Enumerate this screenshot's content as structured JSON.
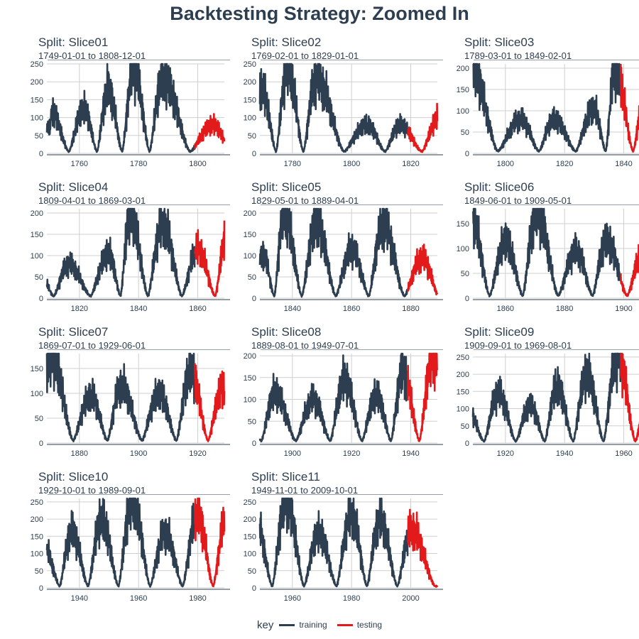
{
  "title": "Backtesting Strategy: Zoomed In",
  "legend": {
    "title": "key",
    "items": [
      {
        "label": "training",
        "color": "#2c3e50"
      },
      {
        "label": "testing",
        "color": "#e31a1c"
      }
    ]
  },
  "colors": {
    "training": "#2c3e50",
    "testing": "#e31a1c",
    "grid": "#cfcfcf",
    "axis": "#2c3e50"
  },
  "chart_data": [
    {
      "type": "line",
      "title": "Split: Slice01",
      "subtitle": "1749-01-01 to 1808-12-01",
      "xlim": [
        1749,
        1809
      ],
      "ylim": [
        0,
        250
      ],
      "yticks": [
        0,
        50,
        100,
        150,
        200,
        250
      ],
      "xticks": [
        1760,
        1780,
        1800
      ],
      "train_end": 1799,
      "grid_x": [
        1760,
        1780,
        1800
      ]
    },
    {
      "type": "line",
      "title": "Split: Slice02",
      "subtitle": "1769-02-01 to 1829-01-01",
      "xlim": [
        1769,
        1829
      ],
      "ylim": [
        0,
        250
      ],
      "yticks": [
        0,
        50,
        100,
        150,
        200,
        250
      ],
      "xticks": [
        1780,
        1800,
        1820
      ],
      "train_end": 1819,
      "grid_x": [
        1780,
        1800,
        1820
      ]
    },
    {
      "type": "line",
      "title": "Split: Slice03",
      "subtitle": "1789-03-01 to 1849-02-01",
      "xlim": [
        1789,
        1849
      ],
      "ylim": [
        0,
        210
      ],
      "yticks": [
        0,
        50,
        100,
        150,
        200
      ],
      "xticks": [
        1800,
        1820,
        1840
      ],
      "train_end": 1839,
      "grid_x": [
        1800,
        1820,
        1840
      ]
    },
    {
      "type": "line",
      "title": "Split: Slice04",
      "subtitle": "1809-04-01 to 1869-03-01",
      "xlim": [
        1809,
        1869
      ],
      "ylim": [
        0,
        210
      ],
      "yticks": [
        0,
        50,
        100,
        150,
        200
      ],
      "xticks": [
        1820,
        1840,
        1860
      ],
      "train_end": 1859,
      "grid_x": [
        1820,
        1840,
        1860
      ]
    },
    {
      "type": "line",
      "title": "Split: Slice05",
      "subtitle": "1829-05-01 to 1889-04-01",
      "xlim": [
        1829,
        1889
      ],
      "ylim": [
        0,
        210
      ],
      "yticks": [
        0,
        50,
        100,
        150,
        200
      ],
      "xticks": [
        1840,
        1860,
        1880
      ],
      "train_end": 1879,
      "grid_x": [
        1840,
        1860,
        1880
      ]
    },
    {
      "type": "line",
      "title": "Split: Slice06",
      "subtitle": "1849-06-01 to 1909-05-01",
      "xlim": [
        1849,
        1909
      ],
      "ylim": [
        0,
        180
      ],
      "yticks": [
        0,
        50,
        100,
        150
      ],
      "xticks": [
        1860,
        1880,
        1900
      ],
      "train_end": 1899,
      "grid_x": [
        1860,
        1880,
        1900
      ]
    },
    {
      "type": "line",
      "title": "Split: Slice07",
      "subtitle": "1869-07-01 to 1929-06-01",
      "xlim": [
        1869,
        1929
      ],
      "ylim": [
        0,
        180
      ],
      "yticks": [
        0,
        50,
        100,
        150
      ],
      "xticks": [
        1880,
        1900,
        1920
      ],
      "train_end": 1919,
      "grid_x": [
        1880,
        1900,
        1920
      ]
    },
    {
      "type": "line",
      "title": "Split: Slice08",
      "subtitle": "1889-08-01 to 1949-07-01",
      "xlim": [
        1889,
        1949
      ],
      "ylim": [
        0,
        205
      ],
      "yticks": [
        0,
        50,
        100,
        150,
        200
      ],
      "xticks": [
        1900,
        1920,
        1940
      ],
      "train_end": 1939,
      "grid_x": [
        1900,
        1920,
        1940
      ]
    },
    {
      "type": "line",
      "title": "Split: Slice09",
      "subtitle": "1909-09-01 to 1969-08-01",
      "xlim": [
        1909,
        1969
      ],
      "ylim": [
        0,
        260
      ],
      "yticks": [
        0,
        50,
        100,
        150,
        200,
        250
      ],
      "xticks": [
        1920,
        1940,
        1960
      ],
      "train_end": 1959,
      "grid_x": [
        1920,
        1940,
        1960
      ]
    },
    {
      "type": "line",
      "title": "Split: Slice10",
      "subtitle": "1929-10-01 to 1989-09-01",
      "xlim": [
        1929,
        1989
      ],
      "ylim": [
        0,
        260
      ],
      "yticks": [
        0,
        50,
        100,
        150,
        200,
        250
      ],
      "xticks": [
        1940,
        1960,
        1980
      ],
      "train_end": 1979,
      "grid_x": [
        1940,
        1960,
        1980
      ]
    },
    {
      "type": "line",
      "title": "Split: Slice11",
      "subtitle": "1949-11-01 to 2009-10-01",
      "xlim": [
        1949,
        2009
      ],
      "ylim": [
        0,
        260
      ],
      "yticks": [
        0,
        50,
        100,
        150,
        200,
        250
      ],
      "xticks": [
        1960,
        1980,
        2000
      ],
      "train_end": 1999,
      "grid_x": [
        1960,
        1980,
        2000
      ]
    }
  ]
}
